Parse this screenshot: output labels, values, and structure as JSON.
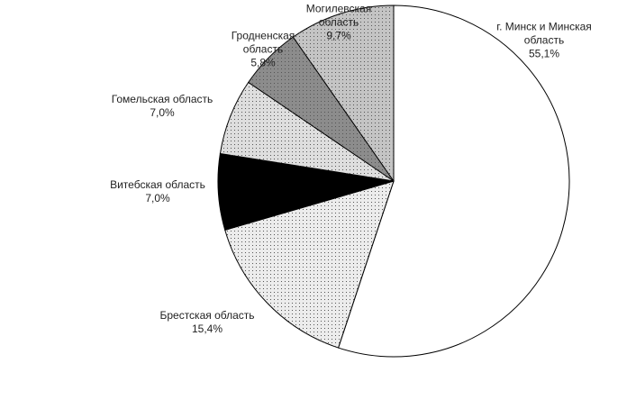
{
  "chart_data": {
    "type": "pie",
    "categories": [
      "г. Минск и Минская область",
      "Брестская область",
      "Витебская область",
      "Гомельская область",
      "Гродненская область",
      "Могилевская область"
    ],
    "values": [
      55.1,
      15.4,
      7.0,
      7.0,
      5.8,
      9.7
    ],
    "value_labels": [
      "55,1%",
      "15,4%",
      "7,0%",
      "7,0%",
      "5,8%",
      "9,7%"
    ],
    "colors": [
      "#ffffff",
      "#ececec",
      "#000000",
      "#dedede",
      "#8c8c8c",
      "#c4c4c4"
    ]
  }
}
